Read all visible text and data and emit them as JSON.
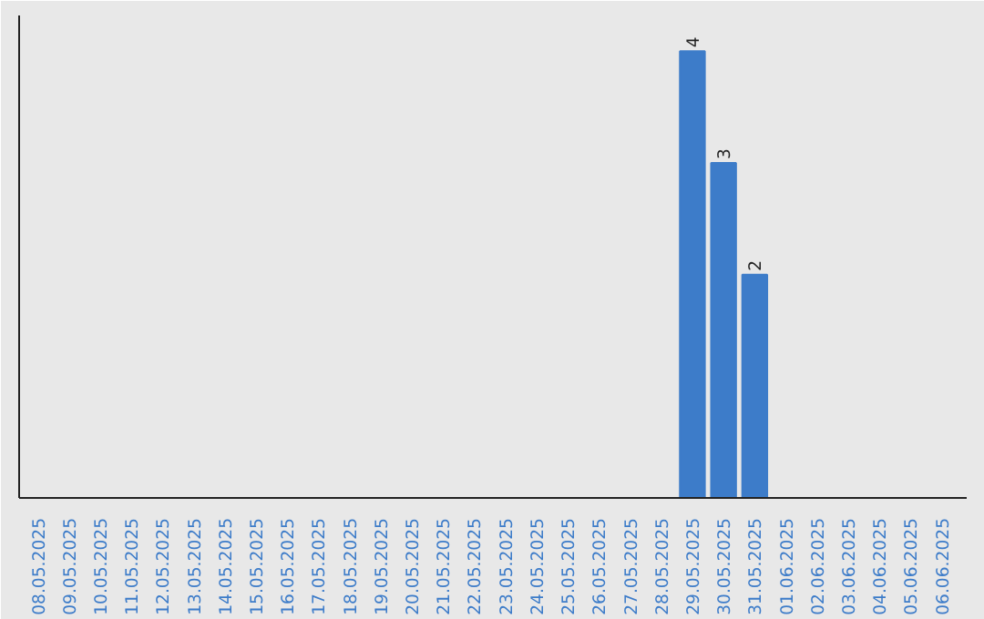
{
  "chart_data": {
    "type": "bar",
    "categories": [
      "08.05.2025",
      "09.05.2025",
      "10.05.2025",
      "11.05.2025",
      "12.05.2025",
      "13.05.2025",
      "14.05.2025",
      "15.05.2025",
      "16.05.2025",
      "17.05.2025",
      "18.05.2025",
      "19.05.2025",
      "20.05.2025",
      "21.05.2025",
      "22.05.2025",
      "23.05.2025",
      "24.05.2025",
      "25.05.2025",
      "26.05.2025",
      "27.05.2025",
      "28.05.2025",
      "29.05.2025",
      "30.05.2025",
      "31.05.2025",
      "01.06.2025",
      "02.06.2025",
      "03.06.2025",
      "04.06.2025",
      "05.06.2025",
      "06.06.2025"
    ],
    "values": [
      null,
      null,
      null,
      null,
      null,
      null,
      null,
      null,
      null,
      null,
      null,
      null,
      null,
      null,
      null,
      null,
      null,
      null,
      null,
      null,
      null,
      4,
      3,
      2,
      null,
      null,
      null,
      null,
      null,
      null
    ],
    "data_labels": true,
    "tick_labels": "x",
    "color": "#3d7cc9"
  }
}
